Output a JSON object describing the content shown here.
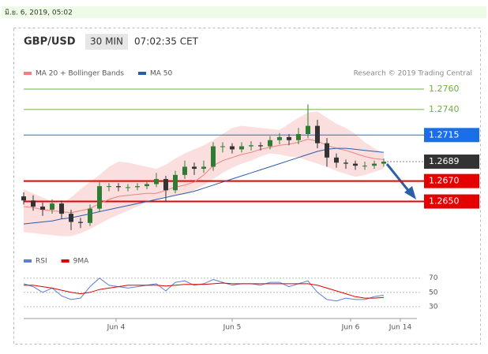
{
  "header": {
    "date": "มิ.ย. 6, 2019, 05:02",
    "symbol": "GBP/USD",
    "interval": "30 MIN",
    "time": "07:02:35 CET",
    "credit": "Research © 2019 Trading Central"
  },
  "chart_data": [
    {
      "type": "candlestick",
      "x": [
        0,
        4,
        8,
        12,
        16,
        20,
        24,
        28,
        32,
        36,
        40,
        44,
        48,
        52,
        56,
        60,
        64,
        68,
        72,
        76,
        80,
        84,
        88,
        92,
        96,
        100,
        104,
        108,
        112,
        116,
        120,
        124,
        128,
        132,
        136,
        140,
        144,
        148,
        152
      ],
      "open": [
        1.2655,
        1.2651,
        1.2645,
        1.2642,
        1.2648,
        1.2638,
        1.263,
        1.2629,
        1.2643,
        1.2665,
        1.2665,
        1.2664,
        1.2664,
        1.2665,
        1.2667,
        1.2672,
        1.2661,
        1.2676,
        1.2684,
        1.2682,
        1.2684,
        1.2704,
        1.2704,
        1.2701,
        1.2704,
        1.2705,
        1.2704,
        1.271,
        1.2713,
        1.271,
        1.2716,
        1.2724,
        1.2707,
        1.2693,
        1.2688,
        1.2687,
        1.2685,
        1.2685,
        1.2687
      ],
      "high": [
        1.2659,
        1.2656,
        1.2649,
        1.2652,
        1.2651,
        1.2642,
        1.2634,
        1.2647,
        1.2669,
        1.2668,
        1.2668,
        1.2667,
        1.2668,
        1.267,
        1.2678,
        1.2675,
        1.268,
        1.269,
        1.2688,
        1.269,
        1.2708,
        1.2708,
        1.2707,
        1.2708,
        1.2709,
        1.2708,
        1.2714,
        1.2717,
        1.2716,
        1.2722,
        1.2745,
        1.273,
        1.2712,
        1.2697,
        1.2691,
        1.269,
        1.2689,
        1.269,
        1.2692
      ],
      "low": [
        1.2647,
        1.2641,
        1.2636,
        1.2638,
        1.2633,
        1.2622,
        1.2624,
        1.2626,
        1.264,
        1.266,
        1.266,
        1.266,
        1.2661,
        1.2662,
        1.2664,
        1.265,
        1.2658,
        1.2672,
        1.2676,
        1.2678,
        1.268,
        1.2698,
        1.2697,
        1.2698,
        1.27,
        1.27,
        1.2701,
        1.2706,
        1.2705,
        1.2706,
        1.2712,
        1.2702,
        1.2684,
        1.2683,
        1.2682,
        1.2681,
        1.2681,
        1.2682,
        1.2684
      ],
      "close": [
        1.2651,
        1.2645,
        1.2642,
        1.2648,
        1.2638,
        1.263,
        1.2629,
        1.2643,
        1.2665,
        1.2665,
        1.2664,
        1.2664,
        1.2665,
        1.2667,
        1.2672,
        1.2661,
        1.2676,
        1.2684,
        1.2682,
        1.2684,
        1.2704,
        1.2704,
        1.2701,
        1.2704,
        1.2705,
        1.2704,
        1.271,
        1.2713,
        1.271,
        1.2716,
        1.2724,
        1.2707,
        1.2693,
        1.2688,
        1.2687,
        1.2685,
        1.2685,
        1.2687,
        1.2689
      ],
      "up_color": "#2f7d32",
      "down_color": "#333333",
      "band": {
        "color": "#f9c9c9",
        "upper": [
          1.2662,
          1.2658,
          1.2654,
          1.265,
          1.2648,
          1.2654,
          1.2662,
          1.2669,
          1.2676,
          1.2684,
          1.2689,
          1.2688,
          1.2686,
          1.2684,
          1.2682,
          1.2686,
          1.2692,
          1.2697,
          1.2701,
          1.2705,
          1.271,
          1.2716,
          1.2722,
          1.2724,
          1.2723,
          1.2722,
          1.2721,
          1.272,
          1.2726,
          1.2732,
          1.2737,
          1.2738,
          1.2732,
          1.2726,
          1.2722,
          1.2716,
          1.2708,
          1.2702,
          1.2697
        ],
        "lower": [
          1.262,
          1.2619,
          1.2618,
          1.2617,
          1.2616,
          1.2616,
          1.2619,
          1.2623,
          1.2628,
          1.2633,
          1.2637,
          1.2641,
          1.2645,
          1.2649,
          1.2652,
          1.2655,
          1.2656,
          1.2657,
          1.2661,
          1.2666,
          1.2672,
          1.2678,
          1.2683,
          1.2687,
          1.269,
          1.2694,
          1.2697,
          1.2696,
          1.2694,
          1.2693,
          1.269,
          1.2687,
          1.2684,
          1.268,
          1.2677,
          1.2674,
          1.2676,
          1.2679,
          1.2682
        ]
      },
      "series": [
        {
          "name": "MA 20 + Bollinger Bands",
          "color": "#f08080",
          "values": [
            1.2645,
            1.2644,
            1.2642,
            1.2641,
            1.264,
            1.2639,
            1.2641,
            1.2643,
            1.2648,
            1.2652,
            1.2655,
            1.2656,
            1.2657,
            1.2658,
            1.2658,
            1.2661,
            1.2664,
            1.2666,
            1.2669,
            1.2676,
            1.2685,
            1.269,
            1.2693,
            1.2696,
            1.2698,
            1.2701,
            1.2703,
            1.2705,
            1.2706,
            1.2708,
            1.2711,
            1.2709,
            1.2705,
            1.2702,
            1.27,
            1.2697,
            1.2694,
            1.2692,
            1.2691
          ]
        },
        {
          "name": "MA 50",
          "color": "#2b5ca8",
          "values": [
            1.2628,
            1.2629,
            1.263,
            1.2631,
            1.2633,
            1.2634,
            1.2636,
            1.2638,
            1.264,
            1.2642,
            1.2644,
            1.2646,
            1.2648,
            1.265,
            1.2652,
            1.2654,
            1.2656,
            1.2658,
            1.266,
            1.2663,
            1.2666,
            1.2669,
            1.2672,
            1.2675,
            1.2678,
            1.2681,
            1.2684,
            1.2687,
            1.269,
            1.2693,
            1.2696,
            1.2699,
            1.2701,
            1.2702,
            1.2702,
            1.2701,
            1.27,
            1.2699,
            1.2698
          ]
        }
      ],
      "levels": [
        {
          "value": 1.276,
          "label": "1.2760",
          "color": "#6fb43f",
          "style": "thin",
          "box": false
        },
        {
          "value": 1.274,
          "label": "1.2740",
          "color": "#6fb43f",
          "style": "thin",
          "box": false
        },
        {
          "value": 1.2715,
          "label": "1.2715",
          "color": "#1a6fe8",
          "style": "thin",
          "box": true
        },
        {
          "value": 1.2689,
          "label": "1.2689",
          "color": "#333333",
          "style": "dotted",
          "box": true
        },
        {
          "value": 1.267,
          "label": "1.2670",
          "color": "#e50000",
          "style": "bold",
          "box": true
        },
        {
          "value": 1.265,
          "label": "1.2650",
          "color": "#e50000",
          "style": "bold",
          "box": true
        }
      ],
      "xlim": [
        0,
        166
      ],
      "ylim": [
        1.2608,
        1.277
      ]
    },
    {
      "type": "line",
      "x": [
        0,
        4,
        8,
        12,
        16,
        20,
        24,
        28,
        32,
        36,
        40,
        44,
        48,
        52,
        56,
        60,
        64,
        68,
        72,
        76,
        80,
        84,
        88,
        92,
        96,
        100,
        104,
        108,
        112,
        116,
        120,
        124,
        128,
        132,
        136,
        140,
        144,
        148,
        152
      ],
      "series": [
        {
          "name": "RSI",
          "color": "#5b7fd6",
          "values": [
            62,
            58,
            50,
            56,
            45,
            40,
            42,
            58,
            70,
            60,
            58,
            56,
            58,
            60,
            62,
            52,
            64,
            66,
            60,
            62,
            68,
            64,
            60,
            62,
            62,
            60,
            64,
            64,
            58,
            62,
            66,
            50,
            40,
            38,
            42,
            40,
            40,
            44,
            46
          ]
        },
        {
          "name": "9MA",
          "color": "#e00000",
          "values": [
            60,
            60,
            58,
            56,
            53,
            50,
            48,
            50,
            54,
            56,
            58,
            60,
            60,
            60,
            60,
            59,
            60,
            61,
            61,
            61,
            62,
            63,
            62,
            62,
            62,
            62,
            62,
            62,
            62,
            62,
            62,
            60,
            56,
            52,
            48,
            44,
            42,
            42,
            43
          ]
        }
      ],
      "xlim": [
        0,
        166
      ],
      "ylim": [
        20,
        84
      ],
      "yticks": [
        30,
        50,
        70
      ],
      "grid": true,
      "xticks": [
        {
          "value": 39,
          "label": "Jun 4"
        },
        {
          "value": 88,
          "label": "Jun 5"
        },
        {
          "value": 138,
          "label": "Jun 6"
        },
        {
          "value": 159,
          "label": "Jun 14"
        }
      ]
    }
  ]
}
